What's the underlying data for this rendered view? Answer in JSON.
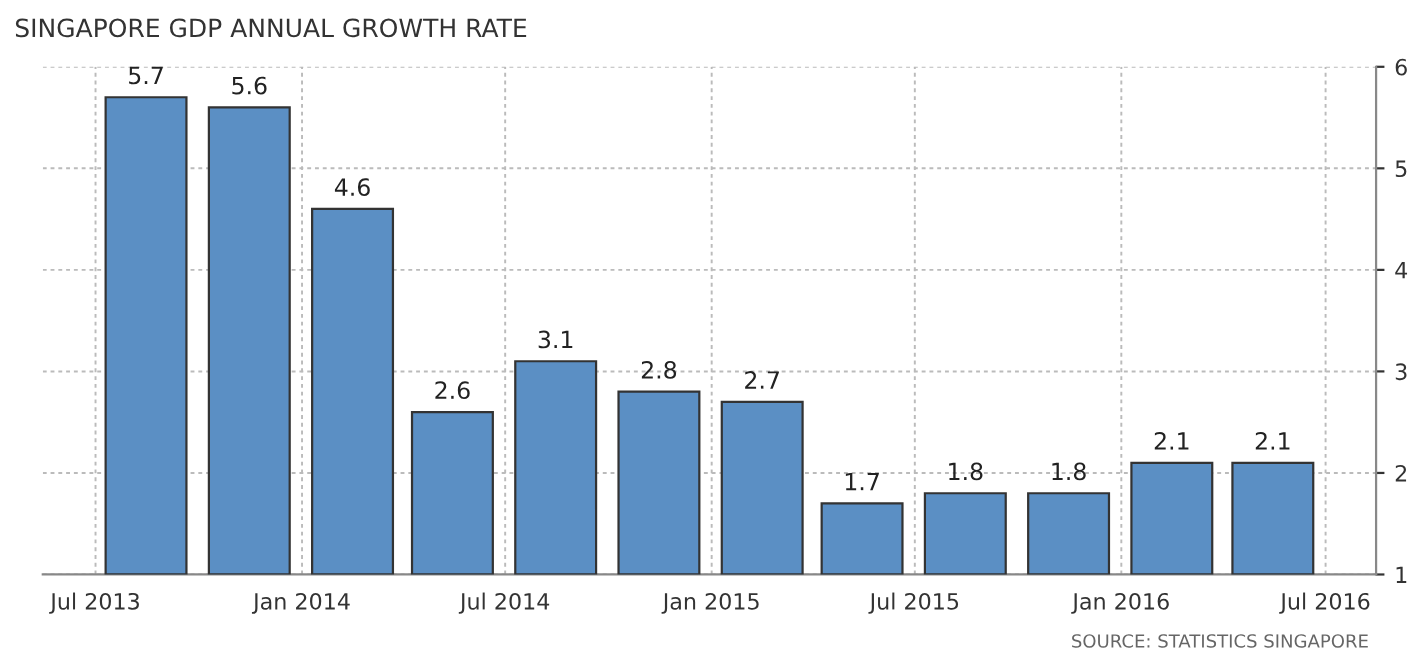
{
  "chart_data": {
    "type": "bar",
    "title": "SINGAPORE GDP ANNUAL GROWTH RATE",
    "x": [
      "2013-08-15",
      "2013-11-15",
      "2014-02-15",
      "2014-05-15",
      "2014-08-15",
      "2014-11-15",
      "2015-02-15",
      "2015-05-15",
      "2015-08-15",
      "2015-11-15",
      "2016-02-15",
      "2016-05-15"
    ],
    "values": [
      5.7,
      5.6,
      4.6,
      2.6,
      3.1,
      2.8,
      2.7,
      1.7,
      1.8,
      1.8,
      2.1,
      2.1
    ],
    "color": "#5b8fc4",
    "data_labels": true,
    "xlim": [
      "2013-05-15",
      "2016-08-15"
    ],
    "xticks": [
      {
        "value": "2013-07-01",
        "label": "Jul 2013"
      },
      {
        "value": "2014-01-01",
        "label": "Jan 2014"
      },
      {
        "value": "2014-07-01",
        "label": "Jul 2014"
      },
      {
        "value": "2015-01-01",
        "label": "Jan 2015"
      },
      {
        "value": "2015-07-01",
        "label": "Jul 2015"
      },
      {
        "value": "2016-01-01",
        "label": "Jan 2016"
      },
      {
        "value": "2016-07-01",
        "label": "Jul 2016"
      }
    ],
    "ylim": [
      1,
      6
    ],
    "yticks": [
      1,
      2,
      3,
      4,
      5,
      6
    ],
    "grid": true,
    "annotations": [
      "SOURCE: STATISTICS SINGAPORE"
    ]
  }
}
